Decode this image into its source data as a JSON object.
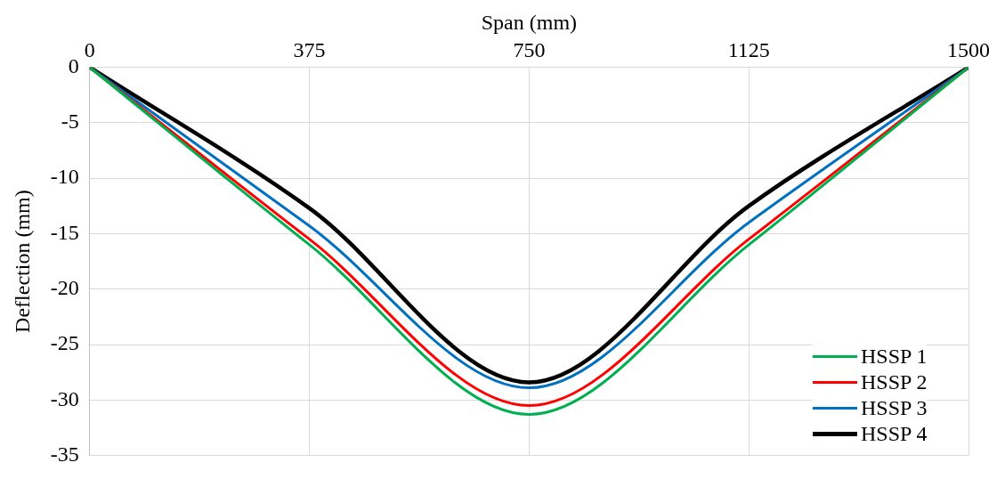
{
  "chart_data": {
    "type": "line",
    "xlabel": "Span (mm)",
    "ylabel": "Deflection (mm)",
    "x": [
      0,
      375,
      750,
      1125,
      1500
    ],
    "series": [
      {
        "name": "HSSP 1",
        "color": "#00b050",
        "values": [
          0,
          -16,
          -31.3,
          -16,
          0
        ]
      },
      {
        "name": "HSSP 2",
        "color": "#ff0000",
        "values": [
          0,
          -15.5,
          -30.5,
          -15.5,
          0
        ]
      },
      {
        "name": "HSSP 3",
        "color": "#0070c0",
        "values": [
          0,
          -14.3,
          -28.9,
          -14,
          0
        ]
      },
      {
        "name": "HSSP 4",
        "color": "#000000",
        "values": [
          0,
          -12.7,
          -28.4,
          -12.5,
          0
        ]
      }
    ],
    "xlim": [
      0,
      1500
    ],
    "xticks": [
      0,
      375,
      750,
      1125,
      1500
    ],
    "ylim": [
      -35,
      0
    ],
    "yticks": [
      -35,
      -30,
      -25,
      -20,
      -15,
      -10,
      -5,
      0
    ],
    "grid": true,
    "legend": "bottom right",
    "marker": "none",
    "line_style": "solid"
  }
}
